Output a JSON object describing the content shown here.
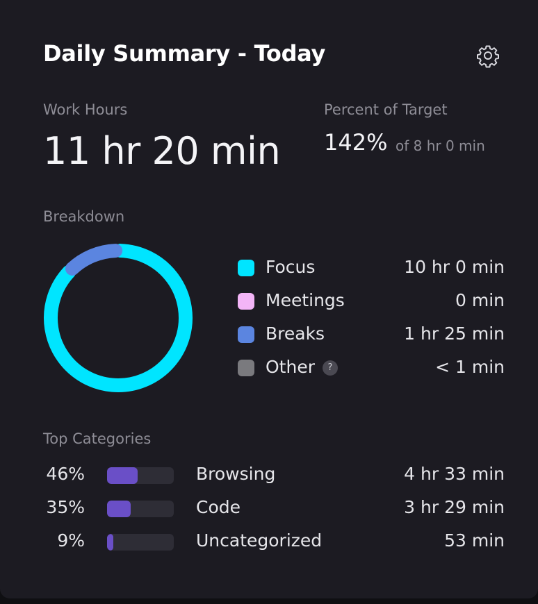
{
  "header": {
    "title": "Daily Summary - Today",
    "settings_icon": "gear-icon"
  },
  "work_hours": {
    "label": "Work Hours",
    "value": "11 hr 20 min"
  },
  "target": {
    "label": "Percent of Target",
    "percent": "142%",
    "of_text": "of 8 hr 0 min"
  },
  "breakdown": {
    "label": "Breakdown",
    "items": [
      {
        "label": "Focus",
        "value": "10 hr 0 min",
        "minutes": 600,
        "color": "#00e5ff"
      },
      {
        "label": "Meetings",
        "value": "0 min",
        "minutes": 0,
        "color": "#f3b5f7"
      },
      {
        "label": "Breaks",
        "value": "1 hr 25 min",
        "minutes": 85,
        "color": "#5b85e0"
      },
      {
        "label": "Other",
        "value": "< 1 min",
        "minutes": 0.5,
        "color": "#7a7a7e",
        "help": "?"
      }
    ]
  },
  "top_categories": {
    "label": "Top Categories",
    "items": [
      {
        "percent": "46%",
        "fraction": 0.46,
        "name": "Browsing",
        "value": "4 hr 33 min"
      },
      {
        "percent": "35%",
        "fraction": 0.35,
        "name": "Code",
        "value": "3 hr 29 min"
      },
      {
        "percent": "9%",
        "fraction": 0.09,
        "name": "Uncategorized",
        "value": "53 min"
      }
    ]
  }
}
